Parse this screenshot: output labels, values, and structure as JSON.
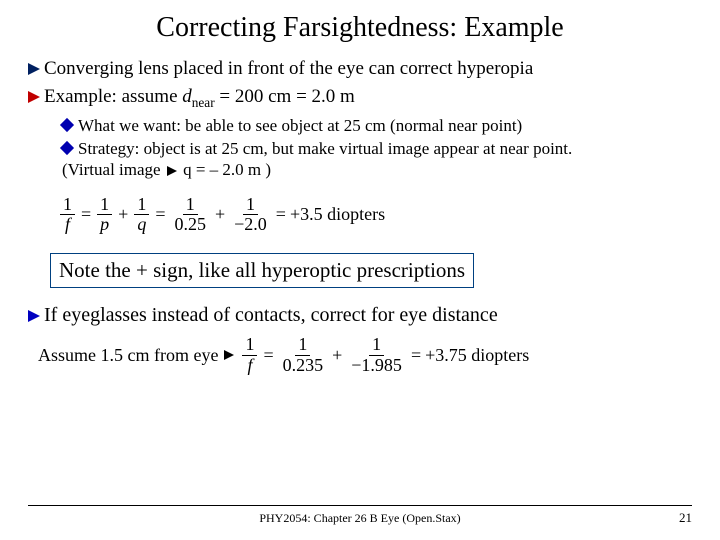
{
  "title": "Correcting Farsightedness: Example",
  "bullet1": {
    "lead": "Converging",
    "rest": " lens placed in front of the eye can correct hyperopia",
    "arrow_color": "#002060",
    "fontsize": 19
  },
  "bullet2": {
    "lead": "Example:",
    "rest_pre": " assume ",
    "var": "d",
    "sub": "near",
    "rest_post": " = 200 cm = 2.0 m",
    "arrow_color": "#c00000",
    "fontsize": 19
  },
  "sub1": {
    "lead": "What",
    "rest": " we want: be able to see object at 25 cm (normal near point)",
    "diamond_color": "#0000b0"
  },
  "sub2": {
    "lead": "Strategy:",
    "rest1": " object is at 25 cm, but make virtual image appear at near point.",
    "rest2_pre": "(Virtual image ",
    "rest2_post": " q = – 2.0 m )"
  },
  "eq1": {
    "f_num": "1",
    "f_den": "f",
    "p_num": "1",
    "p_den": "p",
    "q_num": "1",
    "q_den": "q",
    "v1_num": "1",
    "v1_den": "0.25",
    "v2_num": "1",
    "v2_den": "−2.0",
    "result": "+3.5 diopters"
  },
  "note": "Note the + sign, like all hyperoptic prescriptions",
  "bullet3": {
    "lead": "If",
    "rest": " eyeglasses instead of contacts, correct for eye distance",
    "arrow_color": "#0000c0",
    "fontsize": 20
  },
  "eq2": {
    "prefix": "Assume 1.5 cm from eye ",
    "f_num": "1",
    "f_den": "f",
    "v1_num": "1",
    "v1_den": "0.235",
    "v2_num": "1",
    "v2_den": "−1.985",
    "result": "+3.75 diopters"
  },
  "footer": "PHY2054: Chapter 26 B Eye (Open.Stax)",
  "page": "21",
  "colors": {
    "title": "#000000",
    "text": "#000000",
    "note_border": "#004080",
    "background": "#ffffff"
  }
}
